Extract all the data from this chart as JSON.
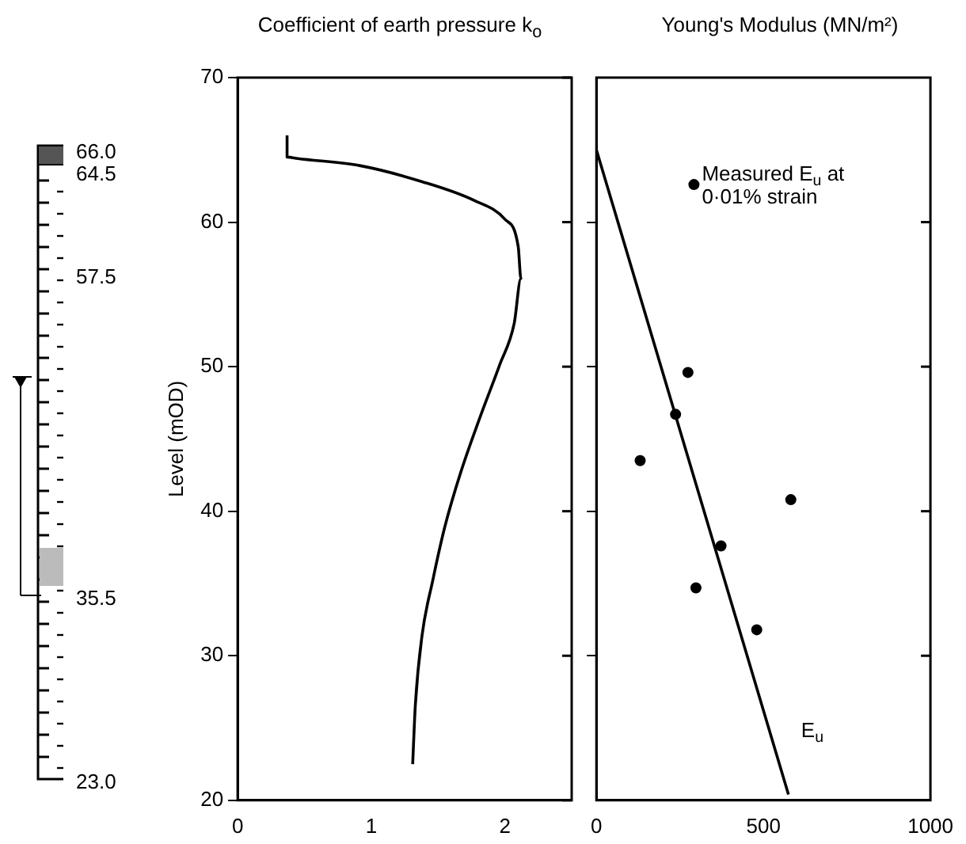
{
  "chart_data": [
    {
      "type": "other",
      "annotations": [
        "66.0",
        "64.5",
        "57.5",
        "35.5",
        "23.0"
      ]
    },
    {
      "type": "line",
      "title": "Coefficient of earth pressure k$_{o}$",
      "ylabel": "Level (mOD)",
      "xlim": [
        0,
        2.5
      ],
      "xticks": [
        0,
        1,
        2
      ],
      "ylim": [
        20,
        70
      ],
      "yticks": [
        20,
        30,
        40,
        50,
        60,
        70
      ],
      "grid": false,
      "legend": false,
      "series": [
        {
          "color": "#000000",
          "x": [
            0.37,
            0.37,
            0.45,
            0.92,
            1.38,
            1.77,
            2.0,
            2.1,
            2.12,
            2.07,
            1.96,
            1.81,
            1.67,
            1.55,
            1.46,
            1.38,
            1.33,
            1.31
          ],
          "values": [
            66.0,
            64.5,
            64.4,
            63.9,
            62.8,
            61.5,
            60.2,
            58.3,
            56.1,
            53.0,
            50.1,
            46.4,
            42.7,
            38.9,
            35.2,
            31.4,
            26.6,
            22.5
          ]
        }
      ]
    },
    {
      "type": "scatter",
      "title": "Young's Modulus (MN/m²)",
      "tick_labels": "x",
      "xlim": [
        0,
        1000
      ],
      "xticks": [
        0,
        500,
        1000
      ],
      "ylim": [
        20,
        70
      ],
      "yticks": [
        30,
        40,
        50,
        60
      ],
      "grid": false,
      "legend": false,
      "series": [
        {
          "name": "Measured E$_{u}$ at 0·01% strain",
          "color": "#000000",
          "marker": "circle",
          "x": [
            292,
            274,
            237,
            131,
            582,
            373,
            298,
            480
          ],
          "values": [
            62.6,
            49.6,
            46.7,
            43.5,
            40.8,
            37.6,
            34.7,
            31.8
          ]
        },
        {
          "type": "line",
          "name": "E$_{u}$",
          "color": "#000000",
          "x": [
            0,
            575
          ],
          "values": [
            65,
            20.4
          ]
        }
      ]
    }
  ]
}
